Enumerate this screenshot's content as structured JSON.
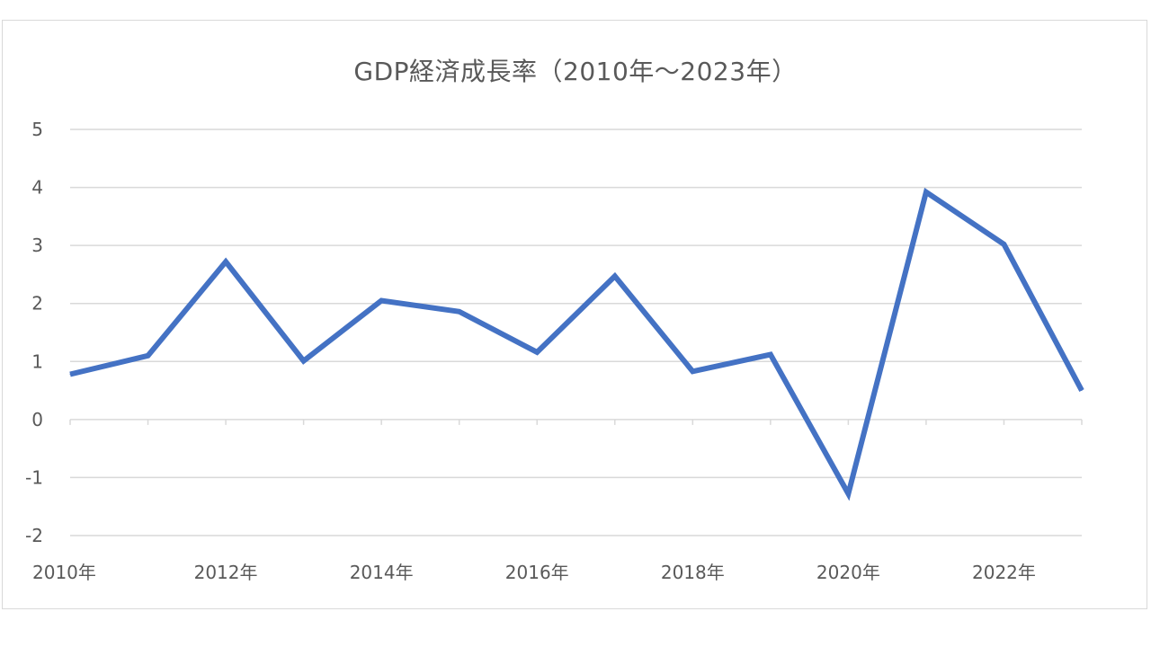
{
  "chart_data": {
    "type": "line",
    "title": "GDP経済成長率（2010年～2023年）",
    "xlabel": "",
    "ylabel": "",
    "x": [
      "2010年",
      "2011年",
      "2012年",
      "2013年",
      "2014年",
      "2015年",
      "2016年",
      "2017年",
      "2018年",
      "2019年",
      "2020年",
      "2021年",
      "2022年",
      "2023年"
    ],
    "x_tick_labels": [
      "2010年",
      "2012年",
      "2014年",
      "2016年",
      "2018年",
      "2020年",
      "2022年"
    ],
    "series": [
      {
        "values": [
          0.78,
          1.1,
          2.72,
          1.01,
          2.05,
          1.86,
          1.16,
          2.47,
          0.83,
          1.12,
          -1.28,
          3.92,
          3.02,
          0.5
        ]
      }
    ],
    "ylim": [
      -2,
      5
    ],
    "y_ticks": [
      5,
      4,
      3,
      2,
      1,
      0,
      -1,
      -2
    ],
    "grid": true,
    "legend": "none",
    "colors": {
      "line": "#4472c4",
      "grid": "#d9d9d9",
      "axis_text": "#595959",
      "zero_axis": "#d9d9d9"
    }
  }
}
